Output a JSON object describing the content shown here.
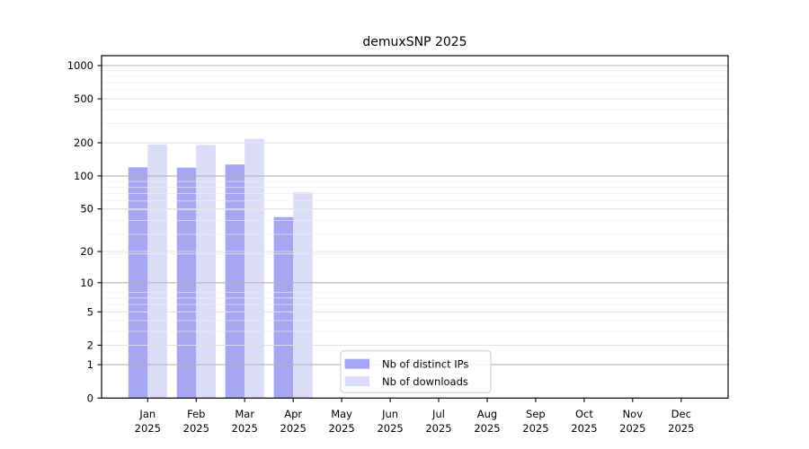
{
  "chart_data": {
    "type": "bar",
    "title": "demuxSNP 2025",
    "categories": [
      "Jan",
      "Feb",
      "Mar",
      "Apr",
      "May",
      "Jun",
      "Jul",
      "Aug",
      "Sep",
      "Oct",
      "Nov",
      "Dec"
    ],
    "x_tick_second_line": "2025",
    "series": [
      {
        "name": "Nb of distinct IPs",
        "color": "#a6a6f2",
        "values": [
          120,
          119,
          127,
          42,
          0,
          0,
          0,
          0,
          0,
          0,
          0,
          0
        ]
      },
      {
        "name": "Nb of downloads",
        "color": "#dcdcf9",
        "values": [
          193,
          191,
          217,
          71,
          0,
          0,
          0,
          0,
          0,
          0,
          0,
          0
        ]
      }
    ],
    "y_ticks": [
      0,
      1,
      2,
      5,
      10,
      20,
      50,
      100,
      200,
      500,
      1000
    ],
    "strong_grid_values": [
      1,
      10,
      100,
      1000
    ],
    "scale": "log1p",
    "ylim": [
      0,
      1230
    ],
    "xlabel": "",
    "ylabel": "",
    "grid": true,
    "legend_position": "bottom-center",
    "colors": {
      "axis": "#000000",
      "grid_strong": "#b3b3b3",
      "grid_major": "#e0e0e0",
      "grid_minor": "#eeeeee",
      "legend_border": "#cccccc",
      "background": "#ffffff"
    }
  }
}
